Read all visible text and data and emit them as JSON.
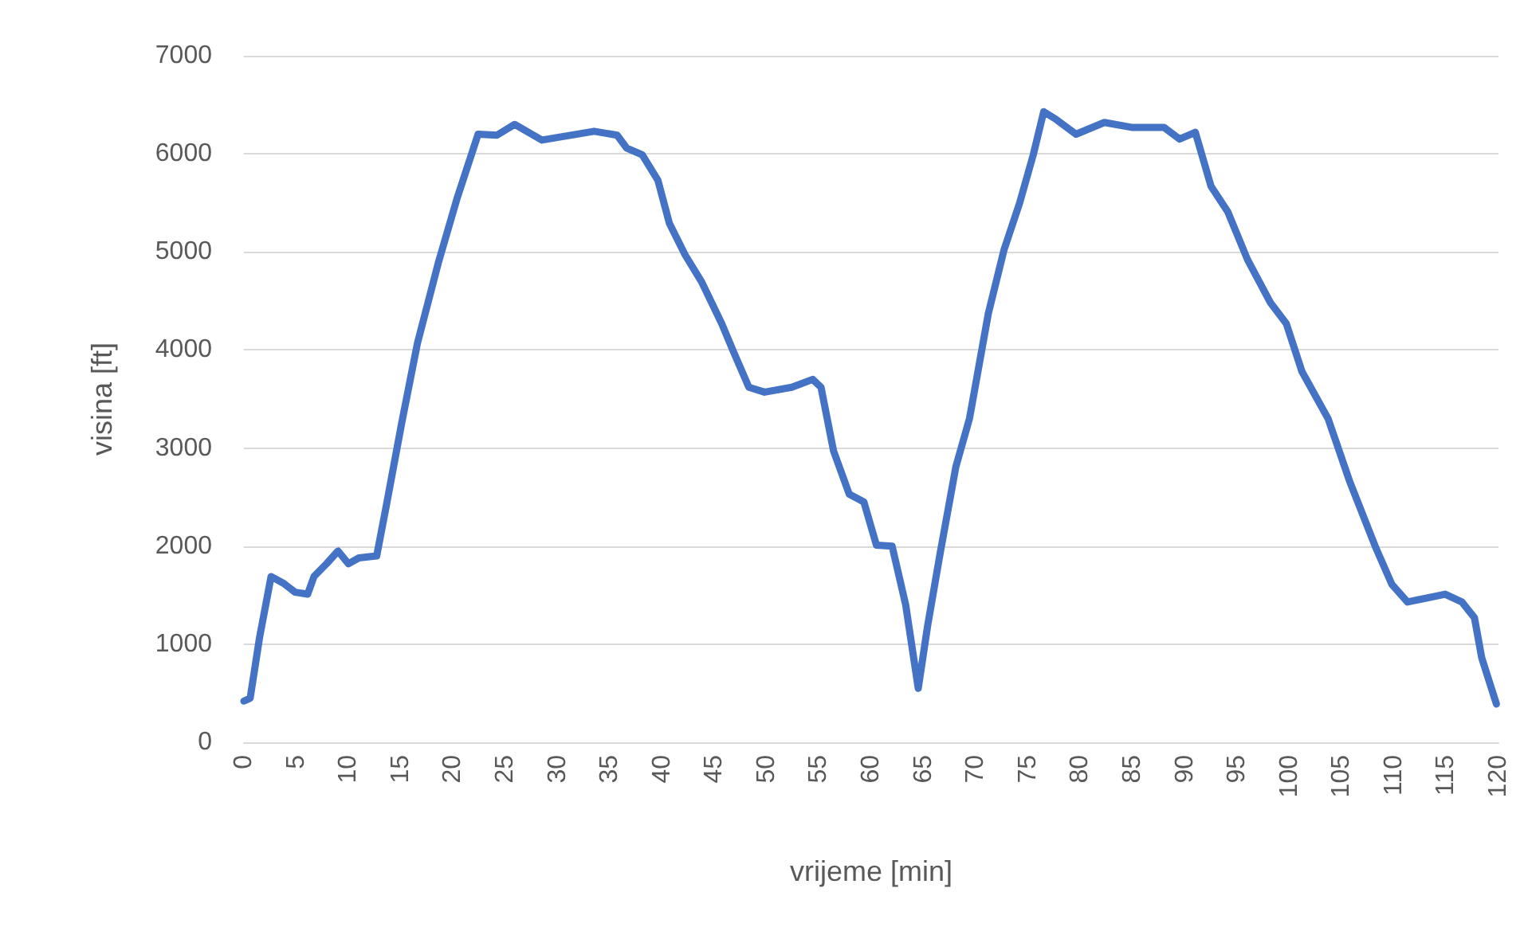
{
  "chart_data": {
    "type": "line",
    "xlabel": "vrijeme [min]",
    "ylabel": "visina [ft]",
    "xlim": [
      0,
      120
    ],
    "xticks": [
      0,
      5,
      10,
      15,
      20,
      25,
      30,
      35,
      40,
      45,
      50,
      55,
      60,
      65,
      70,
      75,
      80,
      85,
      90,
      95,
      100,
      105,
      110,
      115,
      120
    ],
    "ylim": [
      0,
      7000
    ],
    "yticks": [
      0,
      1000,
      2000,
      3000,
      4000,
      5000,
      6000,
      7000
    ],
    "grid": "y",
    "marker": "none",
    "line_style": "solid",
    "series": [
      {
        "color": "#4472c4",
        "x": [
          0,
          0.6,
          1.5,
          2.6,
          3.8,
          4.9,
          6.1,
          6.7,
          7.9,
          9,
          10,
          11,
          12.7,
          13.6,
          15.1,
          16.6,
          18.6,
          20.4,
          22.4,
          24.2,
          25.9,
          28.5,
          33.5,
          35.7,
          36.6,
          38.1,
          39.6,
          40.7,
          42.2,
          43.8,
          45.7,
          46.8,
          48.3,
          49.8,
          52.4,
          54.4,
          55.2,
          56.4,
          57.9,
          59.3,
          60.5,
          62,
          63.3,
          64.5,
          65.4,
          66.6,
          68.1,
          69.4,
          71.2,
          72.7,
          74.2,
          75.5,
          76.5,
          77.7,
          79.6,
          82.3,
          84.9,
          88,
          89.5,
          91,
          92.5,
          94.1,
          96,
          98.2,
          99.7,
          101.2,
          103.7,
          105.8,
          108.2,
          109.8,
          111.3,
          114.9,
          116.5,
          117.7,
          118.4,
          119.8
        ],
        "values": [
          420,
          450,
          1070,
          1690,
          1620,
          1530,
          1510,
          1690,
          1820,
          1950,
          1820,
          1880,
          1900,
          2400,
          3260,
          4070,
          4890,
          5550,
          6200,
          6190,
          6300,
          6140,
          6230,
          6190,
          6060,
          5990,
          5730,
          5290,
          4970,
          4690,
          4270,
          3990,
          3620,
          3570,
          3620,
          3700,
          3620,
          2970,
          2530,
          2450,
          2010,
          2000,
          1400,
          550,
          1190,
          1930,
          2810,
          3300,
          4370,
          5020,
          5500,
          5990,
          6430,
          6350,
          6200,
          6320,
          6270,
          6270,
          6150,
          6220,
          5670,
          5410,
          4920,
          4480,
          4270,
          3780,
          3300,
          2650,
          2000,
          1610,
          1430,
          1510,
          1430,
          1270,
          860,
          390
        ]
      }
    ]
  }
}
